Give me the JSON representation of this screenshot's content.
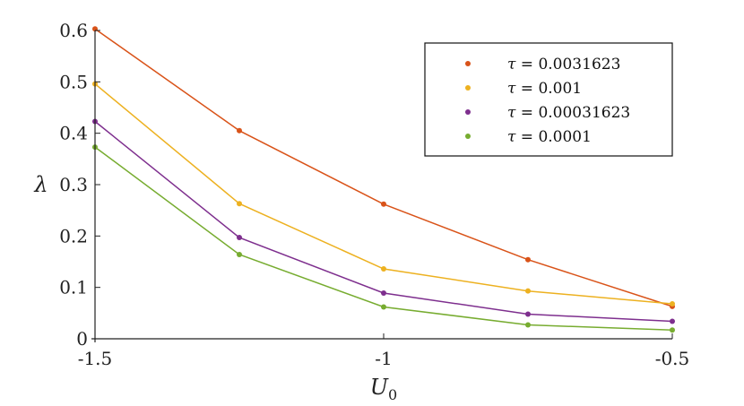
{
  "chart_data": {
    "type": "line",
    "title": "",
    "xlabel": "U",
    "xlabel_sub": "0",
    "ylabel": "λ",
    "xlim": [
      -1.5,
      -0.5
    ],
    "ylim": [
      0,
      0.6
    ],
    "xticks": [
      -1.5,
      -1,
      -0.5
    ],
    "xtick_labels": [
      "-1.5",
      "-1",
      "-0.5"
    ],
    "yticks": [
      0,
      0.1,
      0.2,
      0.3,
      0.4,
      0.5,
      0.6
    ],
    "ytick_labels": [
      "0",
      "0.1",
      "0.2",
      "0.3",
      "0.4",
      "0.5",
      "0.6"
    ],
    "grid": false,
    "legend_position": "top-right",
    "legend_var": "τ",
    "x": [
      -1.5,
      -1.25,
      -1.0,
      -0.75,
      -0.5
    ],
    "series": [
      {
        "name": "0.0031623",
        "color": "#d95319",
        "values": [
          0.603,
          0.405,
          0.262,
          0.154,
          0.063
        ]
      },
      {
        "name": "0.001",
        "color": "#edb120",
        "values": [
          0.496,
          0.263,
          0.136,
          0.093,
          0.068
        ]
      },
      {
        "name": "0.00031623",
        "color": "#7e2f8e",
        "values": [
          0.423,
          0.197,
          0.089,
          0.048,
          0.034
        ]
      },
      {
        "name": "0.0001",
        "color": "#77ac30",
        "values": [
          0.373,
          0.164,
          0.062,
          0.027,
          0.017
        ]
      }
    ]
  }
}
